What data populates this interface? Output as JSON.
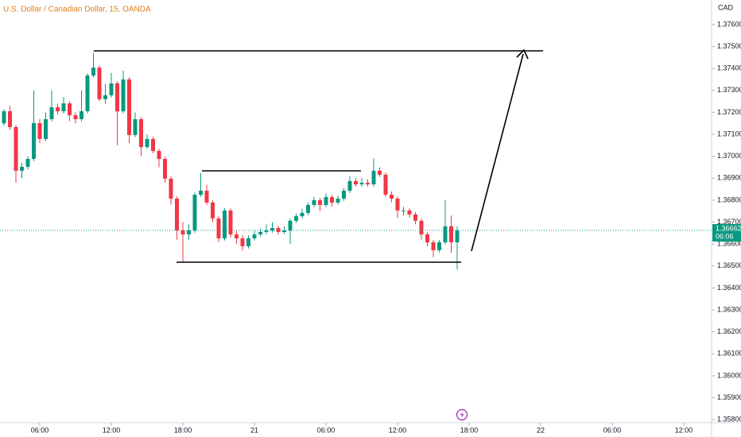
{
  "chart_data": {
    "type": "candlestick",
    "title": "U.S. Dollar / Canadian Dollar, 15, OANDA",
    "y_axis_label": "CAD",
    "up_color": "#089981",
    "down_color": "#f23645",
    "grid": false,
    "open": [
      1.3715,
      1.37205,
      1.37133,
      1.36934,
      1.36952,
      1.36988,
      1.37151,
      1.37079,
      1.37169,
      1.37223,
      1.37205,
      1.37241,
      1.37187,
      1.37169,
      1.37205,
      1.37368,
      1.37404,
      1.3726,
      1.37278,
      1.37332,
      1.37205,
      1.3735,
      1.37097,
      1.37169,
      1.37042,
      1.37079,
      1.37024,
      1.36988,
      1.36898,
      1.36807,
      1.36662,
      1.36644,
      1.36662,
      1.36825,
      1.36843,
      1.36789,
      1.36717,
      1.36626,
      1.36753,
      1.36644,
      1.36626,
      1.3659,
      1.36626,
      1.36644,
      1.36655,
      1.36662,
      1.36673,
      1.36655,
      1.36662,
      1.36706,
      1.36727,
      1.36742,
      1.36778,
      1.368,
      1.36778,
      1.36814,
      1.36789,
      1.36807,
      1.36843,
      1.36887,
      1.36872,
      1.36879,
      1.36872,
      1.36934,
      1.36916,
      1.36825,
      1.36807,
      1.36753,
      1.36753,
      1.36735,
      1.36706,
      1.36644,
      1.36608,
      1.36572,
      1.36608,
      1.36681,
      1.36608
    ],
    "high": [
      1.37215,
      1.3723,
      1.37143,
      1.3697,
      1.37,
      1.373,
      1.3717,
      1.372,
      1.373,
      1.3724,
      1.3727,
      1.37251,
      1.372,
      1.373,
      1.37378,
      1.37471,
      1.37414,
      1.3733,
      1.3738,
      1.37342,
      1.3739,
      1.3736,
      1.372,
      1.37179,
      1.371,
      1.37089,
      1.37034,
      1.36998,
      1.36908,
      1.36817,
      1.367,
      1.3669,
      1.36835,
      1.36924,
      1.3687,
      1.36799,
      1.36727,
      1.36763,
      1.36763,
      1.3666,
      1.3664,
      1.3664,
      1.3666,
      1.3667,
      1.3669,
      1.367,
      1.36683,
      1.3668,
      1.36716,
      1.3674,
      1.3676,
      1.3679,
      1.36815,
      1.3681,
      1.3683,
      1.36824,
      1.3682,
      1.36855,
      1.3691,
      1.369,
      1.369,
      1.36895,
      1.3699,
      1.3695,
      1.36926,
      1.3684,
      1.36817,
      1.3677,
      1.36763,
      1.36745,
      1.36716,
      1.36654,
      1.36618,
      1.36618,
      1.368,
      1.3673,
      1.3668
    ],
    "low": [
      1.3714,
      1.3712,
      1.3688,
      1.369,
      1.3694,
      1.36978,
      1.3706,
      1.37069,
      1.37159,
      1.3719,
      1.37195,
      1.3716,
      1.3715,
      1.37159,
      1.37195,
      1.37358,
      1.3725,
      1.3724,
      1.37268,
      1.3705,
      1.37195,
      1.3706,
      1.37087,
      1.37,
      1.37032,
      1.37014,
      1.3695,
      1.3688,
      1.3678,
      1.3662,
      1.36517,
      1.3662,
      1.36652,
      1.36815,
      1.36779,
      1.367,
      1.3661,
      1.36616,
      1.3663,
      1.366,
      1.3657,
      1.3658,
      1.36616,
      1.36634,
      1.36645,
      1.36652,
      1.36645,
      1.36645,
      1.366,
      1.36696,
      1.36717,
      1.36732,
      1.36768,
      1.3675,
      1.36768,
      1.3677,
      1.36779,
      1.36797,
      1.36833,
      1.36862,
      1.36862,
      1.36862,
      1.36862,
      1.36906,
      1.36815,
      1.3679,
      1.3672,
      1.3673,
      1.3672,
      1.3669,
      1.3662,
      1.3659,
      1.3654,
      1.36562,
      1.36598,
      1.3656,
      1.36484
    ],
    "close": [
      1.37205,
      1.37133,
      1.36934,
      1.36952,
      1.36988,
      1.37151,
      1.37079,
      1.37169,
      1.37223,
      1.37205,
      1.37241,
      1.37187,
      1.37169,
      1.37205,
      1.37368,
      1.37404,
      1.3726,
      1.37278,
      1.37332,
      1.37205,
      1.3735,
      1.37097,
      1.37169,
      1.37042,
      1.37079,
      1.37024,
      1.36988,
      1.36898,
      1.36807,
      1.36662,
      1.36644,
      1.36662,
      1.36825,
      1.36843,
      1.36789,
      1.36717,
      1.36626,
      1.36753,
      1.36644,
      1.36626,
      1.3659,
      1.36626,
      1.36644,
      1.36655,
      1.36662,
      1.36673,
      1.36655,
      1.36662,
      1.36706,
      1.36727,
      1.36742,
      1.36778,
      1.368,
      1.36778,
      1.36814,
      1.36789,
      1.36807,
      1.36843,
      1.36887,
      1.36872,
      1.36879,
      1.36872,
      1.36934,
      1.36916,
      1.36825,
      1.36807,
      1.36753,
      1.36753,
      1.36735,
      1.36706,
      1.36644,
      1.36608,
      1.36572,
      1.36608,
      1.36681,
      1.36608,
      1.36662
    ],
    "last_price": 1.36662,
    "countdown": "06:06",
    "xlim": [
      -0.667,
      118.667
    ],
    "xticks": [
      {
        "value": 6,
        "label": "06:00"
      },
      {
        "value": 18,
        "label": "12:00"
      },
      {
        "value": 30,
        "label": "18:00"
      },
      {
        "value": 42,
        "label": "21"
      },
      {
        "value": 54,
        "label": "06:00"
      },
      {
        "value": 66,
        "label": "12:00"
      },
      {
        "value": 78,
        "label": "18:00"
      },
      {
        "value": 90,
        "label": "22"
      },
      {
        "value": 102,
        "label": "06:00"
      },
      {
        "value": 114,
        "label": "12:00"
      }
    ],
    "ylim": [
      1.35786,
      1.37712
    ],
    "yticks": [
      {
        "value": 1.376,
        "label": "1.37600"
      },
      {
        "value": 1.375,
        "label": "1.37500"
      },
      {
        "value": 1.374,
        "label": "1.37400"
      },
      {
        "value": 1.373,
        "label": "1.37300"
      },
      {
        "value": 1.372,
        "label": "1.37200"
      },
      {
        "value": 1.371,
        "label": "1.37100"
      },
      {
        "value": 1.37,
        "label": "1.37000"
      },
      {
        "value": 1.369,
        "label": "1.36900"
      },
      {
        "value": 1.368,
        "label": "1.36800"
      },
      {
        "value": 1.367,
        "label": "1.36700"
      },
      {
        "value": 1.366,
        "label": "1.36600"
      },
      {
        "value": 1.365,
        "label": "1.36500"
      },
      {
        "value": 1.364,
        "label": "1.36400"
      },
      {
        "value": 1.363,
        "label": "1.36300"
      },
      {
        "value": 1.362,
        "label": "1.36200"
      },
      {
        "value": 1.361,
        "label": "1.36100"
      },
      {
        "value": 1.36,
        "label": "1.36000"
      },
      {
        "value": 1.359,
        "label": "1.35900"
      },
      {
        "value": 1.358,
        "label": "1.35800"
      }
    ]
  }
}
